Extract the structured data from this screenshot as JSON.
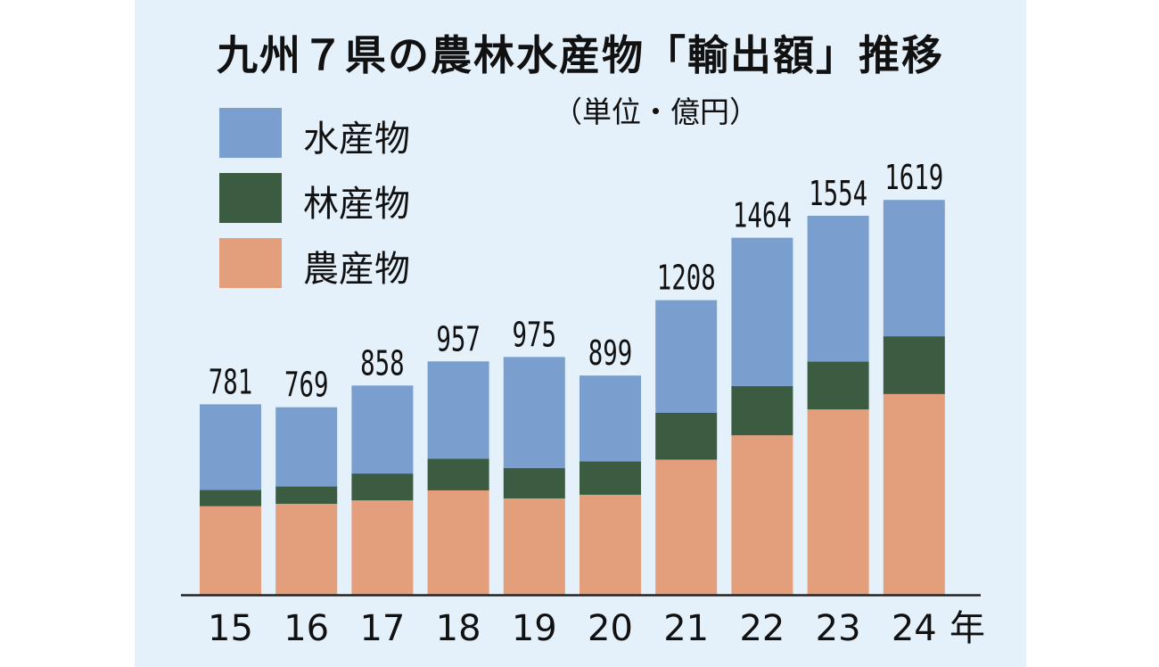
{
  "title": "九州７県の農林水産物「輸出額」推移",
  "unit": "（単位・億円）",
  "year_suffix": "年",
  "colors": {
    "background": "#e5f1fa",
    "水産物": "#7a9fcf",
    "林産物": "#3b5c41",
    "農産物": "#e39e7b",
    "axis": "#222222",
    "text": "#111111"
  },
  "legend": [
    {
      "label": "水産物",
      "color": "#7a9fcf"
    },
    {
      "label": "林産物",
      "color": "#3b5c41"
    },
    {
      "label": "農産物",
      "color": "#e39e7b"
    }
  ],
  "chart_data": {
    "type": "bar",
    "stacked": true,
    "title": "九州７県の農林水産物「輸出額」推移",
    "unit": "億円",
    "categories": [
      "15",
      "16",
      "17",
      "18",
      "19",
      "20",
      "21",
      "22",
      "23",
      "24"
    ],
    "series": [
      {
        "name": "農産物",
        "values": [
          363,
          373,
          387,
          428,
          395,
          410,
          554,
          654,
          760,
          823
        ]
      },
      {
        "name": "林産物",
        "values": [
          67,
          71,
          110,
          130,
          125,
          137,
          192,
          202,
          196,
          237
        ]
      },
      {
        "name": "水産物",
        "values": [
          351,
          325,
          361,
          399,
          455,
          352,
          462,
          608,
          598,
          559
        ]
      }
    ],
    "totals": [
      "781",
      "769",
      "858",
      "957",
      "975",
      "899",
      "1208",
      "1464",
      "1554",
      "1619"
    ],
    "ylim": [
      0,
      1700
    ],
    "grid": false,
    "legend_position": "top-left"
  }
}
